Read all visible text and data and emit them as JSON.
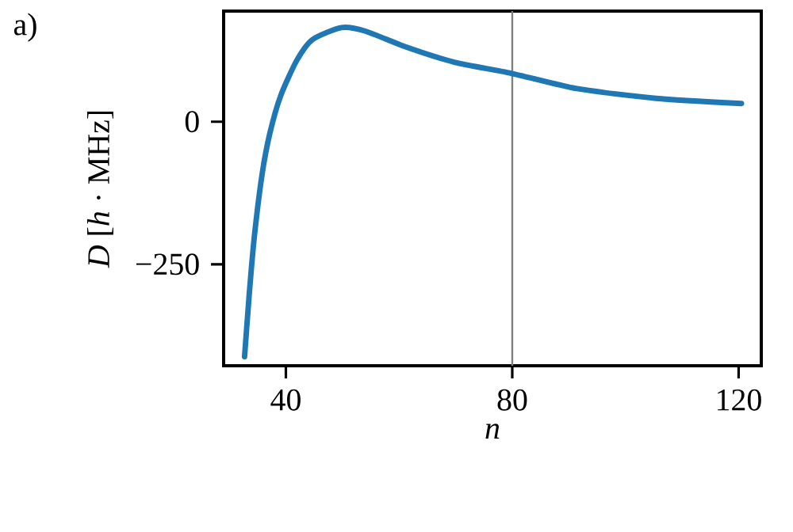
{
  "chart_data": {
    "type": "line",
    "xlabel": "n",
    "ylabel": "*D* [*h* · MHz]",
    "annotations": [
      "a)"
    ],
    "x": [
      32.7,
      33.5,
      34.4,
      35.8,
      37.2,
      39.1,
      41.9,
      44.7,
      49.8,
      54,
      61.5,
      69.9,
      79.8,
      91.4,
      105.4,
      120.5
    ],
    "series": [
      {
        "color": "#1f77b4",
        "values": [
          -412,
          -306,
          -204,
          -92,
          -19,
          46,
          107,
          144,
          165,
          159,
          130,
          104,
          85,
          58,
          41,
          32
        ]
      }
    ],
    "xlim": [
      29,
      124
    ],
    "ylim": [
      -428,
      194
    ],
    "xticks": [
      40,
      80,
      120
    ],
    "yticks": [
      {
        "value": -250,
        "label": "−250"
      },
      0
    ],
    "ref_lines": [
      {
        "axis": "x",
        "value": 80,
        "color": "#808080"
      }
    ],
    "grid": false,
    "line_style": "solid",
    "marker": "none"
  }
}
